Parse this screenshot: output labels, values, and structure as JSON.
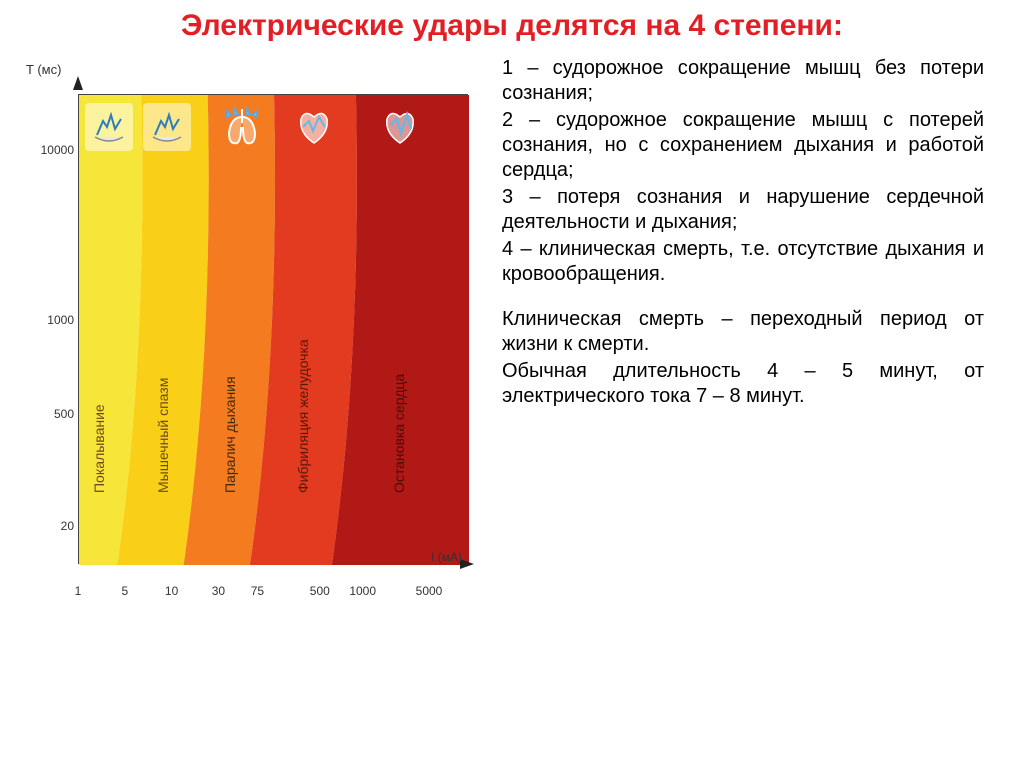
{
  "title": "Электрические удары делятся на 4 степени:",
  "list": {
    "p1": "1 – судорожное сокращение мышц без потери сознания;",
    "p2": "2 – судорожное сокращение мышц с потерей сознания, но с сохранением дыхания и работой сердца;",
    "p3": "3 – потеря сознания и нарушение сердечной деятельности и дыхания;",
    "p4": "4 – клиническая смерть, т.е. отсутствие дыхания и кровообращения.",
    "p5": "Клиническая смерть – переходный период от жизни к смерти.",
    "p6": " Обычная длительность 4 – 5 минут, от электрического тока 7 – 8 минут."
  },
  "chart": {
    "type": "area",
    "y_axis_label": "T (мс)",
    "x_axis_label": "I (мА)",
    "y_ticks": [
      {
        "label": "20",
        "pos_pct": 92
      },
      {
        "label": "500",
        "pos_pct": 68
      },
      {
        "label": "1000",
        "pos_pct": 48
      },
      {
        "label": "10000",
        "pos_pct": 12
      }
    ],
    "x_ticks": [
      {
        "label": "1",
        "pos_pct": 0
      },
      {
        "label": "5",
        "pos_pct": 12
      },
      {
        "label": "10",
        "pos_pct": 24
      },
      {
        "label": "30",
        "pos_pct": 36
      },
      {
        "label": "75",
        "pos_pct": 46
      },
      {
        "label": "500",
        "pos_pct": 62
      },
      {
        "label": "1000",
        "pos_pct": 73
      },
      {
        "label": "5000",
        "pos_pct": 90
      }
    ],
    "zones": [
      {
        "label": "Покалывание",
        "color": "#f7e63a",
        "left_pct": 0,
        "width_pct": 16,
        "label_color": "#6b4a1a"
      },
      {
        "label": "Мышечный спазм",
        "color": "#f9cf17",
        "left_pct": 16,
        "width_pct": 17,
        "label_color": "#6b4a1a"
      },
      {
        "label": "Паралич дыхания",
        "color": "#f47b20",
        "left_pct": 33,
        "width_pct": 17,
        "label_color": "#402a0c"
      },
      {
        "label": "Фибриляция желудочка",
        "color": "#e23b1f",
        "left_pct": 50,
        "width_pct": 21,
        "label_color": "#5a160a"
      },
      {
        "label": "Остановка сердца",
        "color": "#b11916",
        "left_pct": 71,
        "width_pct": 29,
        "label_color": "#4a0b08"
      }
    ],
    "boundary_curves": [
      {
        "from_zone": 0,
        "color": "#d8b410"
      },
      {
        "from_zone": 1,
        "color": "#e39012"
      },
      {
        "from_zone": 2,
        "color": "#c94816"
      },
      {
        "from_zone": 3,
        "color": "#9d1a14"
      }
    ],
    "background_color": "#ffffff",
    "axis_color": "#333333",
    "label_fontsize": 14,
    "tick_fontsize": 12
  },
  "icons": {
    "hand": "hand-tingle-icon",
    "lungs": "lungs-icon",
    "heart1": "heart-fibrillation-icon",
    "heart2": "heart-arrest-icon"
  }
}
